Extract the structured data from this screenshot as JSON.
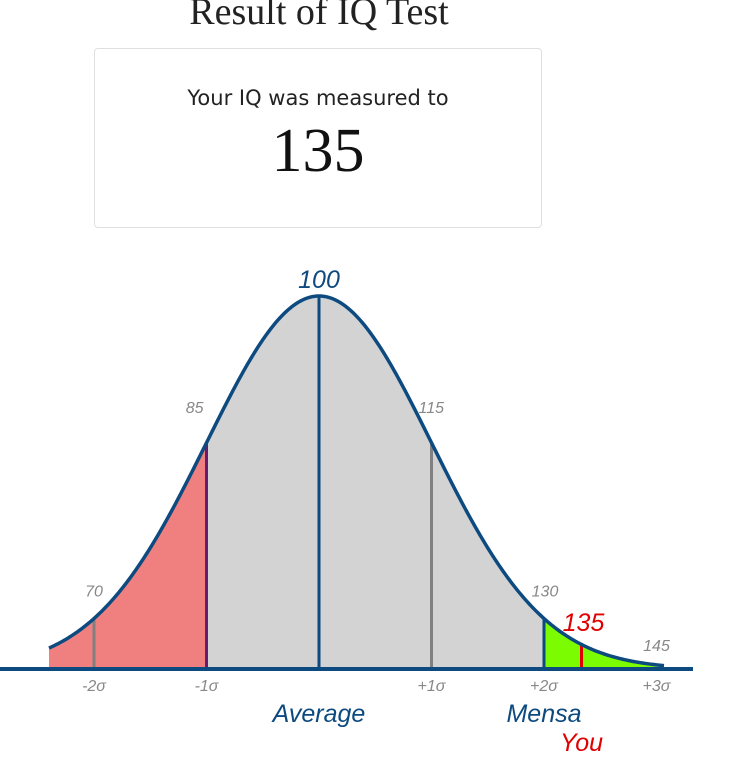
{
  "page": {
    "title": "Result of IQ Test",
    "card": {
      "label": "Your IQ was measured to",
      "score": "135"
    }
  },
  "chart_data": {
    "type": "area",
    "title": "",
    "distribution": {
      "mean": 100,
      "sd": 15
    },
    "xlim": [
      64,
      146
    ],
    "curve_labels": [
      {
        "x": 70,
        "text": "70"
      },
      {
        "x": 85,
        "text": "85"
      },
      {
        "x": 100,
        "text": "100"
      },
      {
        "x": 115,
        "text": "115"
      },
      {
        "x": 130,
        "text": "130"
      },
      {
        "x": 145,
        "text": "145"
      }
    ],
    "sigma_labels": [
      {
        "x": 70,
        "text": "-2σ"
      },
      {
        "x": 85,
        "text": "-1σ"
      },
      {
        "x": 115,
        "text": "+1σ"
      },
      {
        "x": 130,
        "text": "+2σ"
      },
      {
        "x": 145,
        "text": "+3σ"
      }
    ],
    "vertical_lines": [
      {
        "x": 70,
        "color": "#808080"
      },
      {
        "x": 85,
        "color": "#6a1b70"
      },
      {
        "x": 100,
        "color": "#0d4a80"
      },
      {
        "x": 115,
        "color": "#808080"
      },
      {
        "x": 130,
        "color": "#0d4a80"
      }
    ],
    "regions": [
      {
        "from": 64,
        "to": 85,
        "color": "#f08080"
      },
      {
        "from": 85,
        "to": 130,
        "color": "#d3d3d3"
      },
      {
        "from": 130,
        "to": 146,
        "color": "#7cfc00"
      }
    ],
    "annotations": [
      {
        "x": 100,
        "text": "Average"
      },
      {
        "x": 130,
        "text": "Mensa"
      }
    ],
    "marker": {
      "x": 135,
      "text": "135",
      "label": "You",
      "color": "#e00000"
    },
    "curve_color": "#0d4a80"
  }
}
